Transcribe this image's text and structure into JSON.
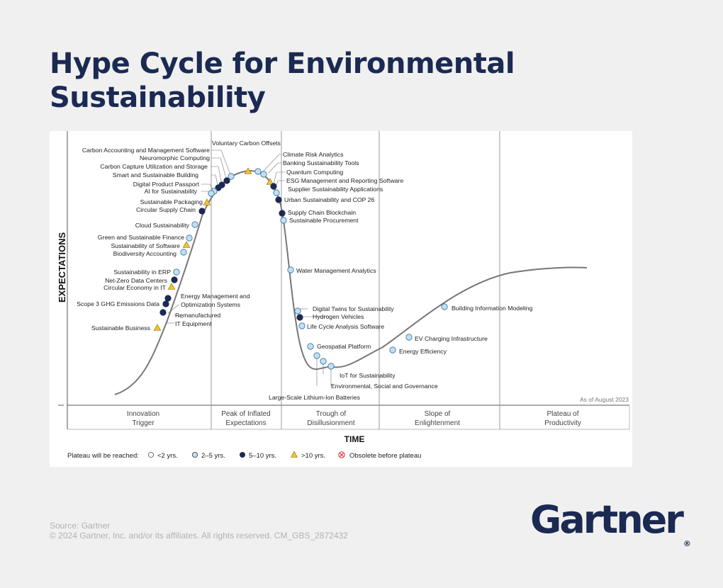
{
  "title": "Hype Cycle for Environmental Sustainability",
  "as_of": "As of August 2023",
  "axes": {
    "y": "EXPECTATIONS",
    "x": "TIME"
  },
  "phases": [
    {
      "line1": "Innovation",
      "line2": "Trigger"
    },
    {
      "line1": "Peak of Inflated",
      "line2": "Expectations"
    },
    {
      "line1": "Trough of",
      "line2": "Disillusionment"
    },
    {
      "line1": "Slope of",
      "line2": "Enlightenment"
    },
    {
      "line1": "Plateau of",
      "line2": "Productivity"
    }
  ],
  "legend": {
    "label": "Plateau will be reached:",
    "items": [
      {
        "key": "lt2",
        "text": "<2 yrs."
      },
      {
        "key": "y2_5",
        "text": "2–5 yrs."
      },
      {
        "key": "y5_10",
        "text": "5–10 yrs."
      },
      {
        "key": "gt10",
        "text": ">10 yrs."
      },
      {
        "key": "obsolete",
        "text": "Obsolete before plateau"
      }
    ]
  },
  "colors": {
    "navy": "#1b2a52",
    "light_blue": "#bfe0f6",
    "yellow": "#f2c230",
    "obsolete_red": "#d22d3a",
    "curve": "#777777"
  },
  "technologies": [
    {
      "id": "t1",
      "name": "Carbon Accounting and Management Software",
      "marker": "y2_5"
    },
    {
      "id": "t2",
      "name": "Neuromorphic Computing",
      "marker": "y5_10"
    },
    {
      "id": "t3",
      "name": "Carbon Capture Utilization and Storage",
      "marker": "y5_10"
    },
    {
      "id": "t4",
      "name": "Smart and Sustainable Building",
      "marker": "y5_10"
    },
    {
      "id": "t5",
      "name": "Digital Product Passport",
      "marker": "y2_5"
    },
    {
      "id": "t6",
      "name": "AI for Sustainability",
      "marker": "y2_5"
    },
    {
      "id": "t7",
      "name": "Sustainable Packaging",
      "marker": "gt10"
    },
    {
      "id": "t8",
      "name": "Circular Supply Chain",
      "marker": "y5_10"
    },
    {
      "id": "t9",
      "name": "Cloud Sustainability",
      "marker": "y2_5"
    },
    {
      "id": "t10",
      "name": "Green and Sustainable Finance",
      "marker": "y2_5"
    },
    {
      "id": "t11",
      "name": "Sustainability of Software",
      "marker": "gt10"
    },
    {
      "id": "t12",
      "name": "Biodiversity Accounting",
      "marker": "y2_5"
    },
    {
      "id": "t13",
      "name": "Sustainability in ERP",
      "marker": "y2_5"
    },
    {
      "id": "t14",
      "name": "Net-Zero Data Centers",
      "marker": "y5_10"
    },
    {
      "id": "t15",
      "name": "Circular Economy in IT",
      "marker": "gt10"
    },
    {
      "id": "t16a",
      "name": "Energy Management and",
      "marker": "y5_10"
    },
    {
      "id": "t16b",
      "name": "Optimization Systems",
      "marker": ""
    },
    {
      "id": "t17",
      "name": "Scope 3 GHG Emissions Data",
      "marker": "y5_10"
    },
    {
      "id": "t18a",
      "name": "Remanufactured",
      "marker": "y5_10"
    },
    {
      "id": "t18b",
      "name": "IT Equipment",
      "marker": ""
    },
    {
      "id": "t19",
      "name": "Sustainable Business",
      "marker": "gt10"
    },
    {
      "id": "t20",
      "name": "Voluntary Carbon Offsets",
      "marker": "gt10"
    },
    {
      "id": "t21",
      "name": "Climate Risk Analytics",
      "marker": "y2_5"
    },
    {
      "id": "t22",
      "name": "Banking Sustainability Tools",
      "marker": "y2_5"
    },
    {
      "id": "t23",
      "name": "Quantum Computing",
      "marker": "gt10"
    },
    {
      "id": "t24",
      "name": "ESG Management and Reporting Software",
      "marker": "y5_10"
    },
    {
      "id": "t25",
      "name": "Supplier Sustainability Applications",
      "marker": "y2_5"
    },
    {
      "id": "t26",
      "name": "Urban Sustainability and COP 26",
      "marker": "y5_10"
    },
    {
      "id": "t27",
      "name": "Supply Chain Blockchain",
      "marker": "y5_10"
    },
    {
      "id": "t28",
      "name": "Sustainable Procurement",
      "marker": "y2_5"
    },
    {
      "id": "t29",
      "name": "Water Management Analytics",
      "marker": "y2_5"
    },
    {
      "id": "t30",
      "name": "Digital Twins for Sustainability",
      "marker": "y2_5"
    },
    {
      "id": "t31",
      "name": "Hydrogen Vehicles",
      "marker": "y5_10"
    },
    {
      "id": "t32",
      "name": "Life Cycle Analysis Software",
      "marker": "y2_5"
    },
    {
      "id": "t33",
      "name": "Geospatial Platform",
      "marker": "y2_5"
    },
    {
      "id": "t34",
      "name": "IoT for Sustainability",
      "marker": "y2_5"
    },
    {
      "id": "t35",
      "name": "Environmental, Social and Governance",
      "marker": "y2_5"
    },
    {
      "id": "t36",
      "name": "Large-Scale Lithium-Ion Batteries",
      "marker": "y2_5"
    },
    {
      "id": "t37",
      "name": "Building Information Modeling",
      "marker": "y2_5"
    },
    {
      "id": "t38",
      "name": "EV Charging Infrastructure",
      "marker": "y2_5"
    },
    {
      "id": "t39",
      "name": "Energy Efficiency",
      "marker": "y2_5"
    }
  ],
  "footer": {
    "source": "Source: Gartner",
    "copyright": "© 2024 Gartner, Inc. and/or its affiliates. All rights reserved. CM_GBS_2872432"
  },
  "logo": {
    "text": "Gartner",
    "mark": "®"
  }
}
